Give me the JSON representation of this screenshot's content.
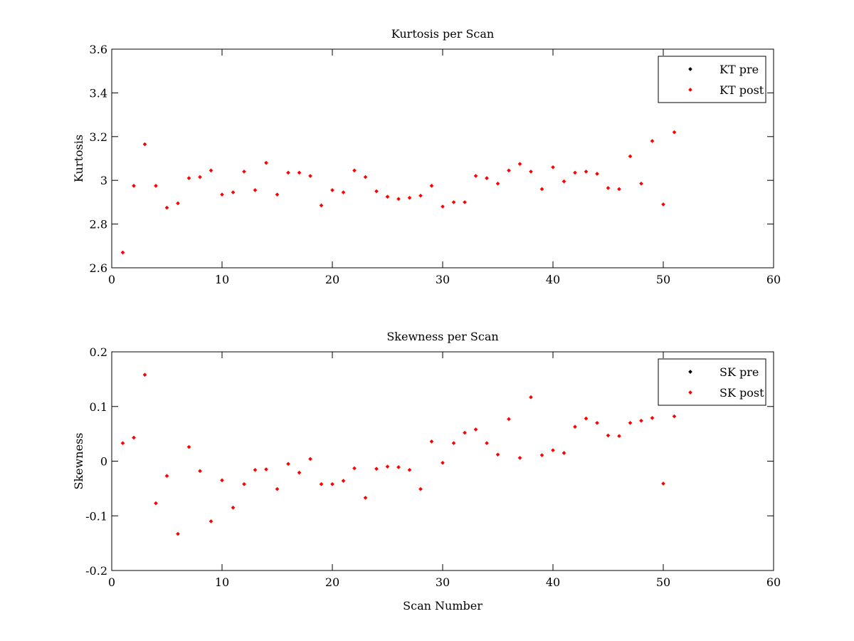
{
  "chart_data": [
    {
      "type": "scatter",
      "title": "Kurtosis per Scan",
      "xlabel": "",
      "ylabel": "Kurtosis",
      "xlim": [
        0,
        60
      ],
      "ylim": [
        2.6,
        3.6
      ],
      "x_ticks": [
        0,
        10,
        20,
        30,
        40,
        50,
        60
      ],
      "y_ticks": [
        2.6,
        2.8,
        3,
        3.2,
        3.4,
        3.6
      ],
      "x_tick_labels": [
        "0",
        "10",
        "20",
        "30",
        "40",
        "50",
        "60"
      ],
      "y_tick_labels": [
        "2.6",
        "2.8",
        "3",
        "3.2",
        "3.4",
        "3.6"
      ],
      "grid": false,
      "legend_position": "top-right",
      "series": [
        {
          "name": "KT pre",
          "color": "#000000",
          "x": [],
          "y": []
        },
        {
          "name": "KT post",
          "color": "#ff0000",
          "x": [
            1,
            2,
            3,
            4,
            5,
            6,
            7,
            8,
            9,
            10,
            11,
            12,
            13,
            14,
            15,
            16,
            17,
            18,
            19,
            20,
            21,
            22,
            23,
            24,
            25,
            26,
            27,
            28,
            29,
            30,
            31,
            32,
            33,
            34,
            35,
            36,
            37,
            38,
            39,
            40,
            41,
            42,
            43,
            44,
            45,
            46,
            47,
            48,
            49,
            50,
            51
          ],
          "y": [
            2.67,
            2.975,
            3.165,
            2.975,
            2.875,
            2.895,
            3.01,
            3.015,
            3.045,
            2.935,
            2.945,
            3.04,
            2.955,
            3.08,
            2.935,
            3.035,
            3.035,
            3.02,
            2.885,
            2.955,
            2.945,
            3.045,
            3.015,
            2.95,
            2.925,
            2.915,
            2.92,
            2.93,
            2.975,
            2.88,
            2.9,
            2.9,
            3.02,
            3.01,
            2.985,
            3.045,
            3.075,
            3.04,
            2.96,
            3.06,
            2.995,
            3.035,
            3.04,
            3.03,
            2.965,
            2.96,
            3.11,
            2.985,
            3.18,
            2.89,
            3.22
          ]
        }
      ]
    },
    {
      "type": "scatter",
      "title": "Skewness per Scan",
      "xlabel": "Scan Number",
      "ylabel": "Skewness",
      "xlim": [
        0,
        60
      ],
      "ylim": [
        -0.2,
        0.2
      ],
      "x_ticks": [
        0,
        10,
        20,
        30,
        40,
        50,
        60
      ],
      "y_ticks": [
        -0.2,
        -0.1,
        0,
        0.1,
        0.2
      ],
      "x_tick_labels": [
        "0",
        "10",
        "20",
        "30",
        "40",
        "50",
        "60"
      ],
      "y_tick_labels": [
        "-0.2",
        "-0.1",
        "0",
        "0.1",
        "0.2"
      ],
      "grid": false,
      "legend_position": "top-right",
      "series": [
        {
          "name": "SK pre",
          "color": "#000000",
          "x": [],
          "y": []
        },
        {
          "name": "SK post",
          "color": "#ff0000",
          "x": [
            1,
            2,
            3,
            4,
            5,
            6,
            7,
            8,
            9,
            10,
            11,
            12,
            13,
            14,
            15,
            16,
            17,
            18,
            19,
            20,
            21,
            22,
            23,
            24,
            25,
            26,
            27,
            28,
            29,
            30,
            31,
            32,
            33,
            34,
            35,
            36,
            37,
            38,
            39,
            40,
            41,
            42,
            43,
            44,
            45,
            46,
            47,
            48,
            49,
            50,
            51
          ],
          "y": [
            0.033,
            0.043,
            0.158,
            -0.077,
            -0.027,
            -0.133,
            0.026,
            -0.018,
            -0.11,
            -0.035,
            -0.085,
            -0.042,
            -0.016,
            -0.015,
            -0.051,
            -0.005,
            -0.021,
            0.004,
            -0.042,
            -0.042,
            -0.036,
            -0.013,
            -0.067,
            -0.014,
            -0.01,
            -0.011,
            -0.016,
            -0.051,
            0.036,
            -0.003,
            0.033,
            0.052,
            0.058,
            0.033,
            0.012,
            0.077,
            0.006,
            0.117,
            0.011,
            0.02,
            0.015,
            0.063,
            0.078,
            0.07,
            0.047,
            0.046,
            0.07,
            0.074,
            0.079,
            -0.041,
            0.082
          ]
        }
      ]
    }
  ]
}
